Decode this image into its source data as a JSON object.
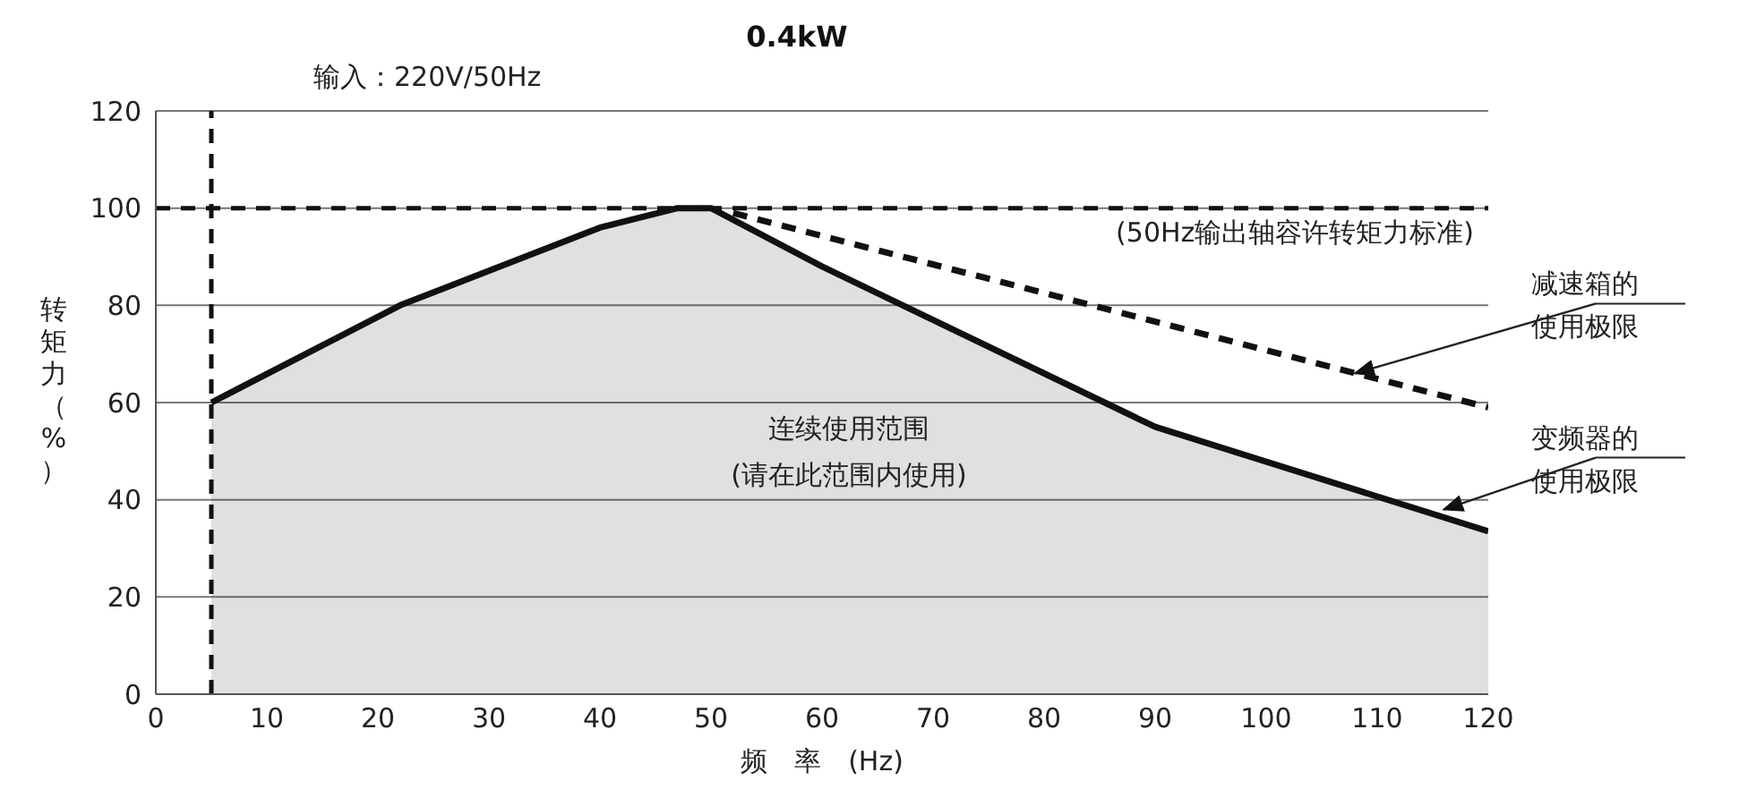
{
  "chart_data": {
    "type": "area",
    "title": "0.4kW",
    "subtitle": "输入：220V/50Hz",
    "xlabel": "频　率　(Hz)",
    "ylabel": "转矩力（%）",
    "series": [
      {
        "color": "#111111",
        "x": [
          5,
          22,
          40,
          47,
          50,
          60,
          90,
          120
        ],
        "values": [
          60,
          80,
          96,
          100,
          100,
          88,
          55,
          33.5
        ]
      },
      {
        "type": "line",
        "color": "#111111",
        "line_style": "dashed",
        "x": [
          52,
          120
        ],
        "values": [
          99,
          59
        ]
      }
    ],
    "xlim": [
      0,
      120
    ],
    "xticks": [
      0,
      10,
      20,
      30,
      40,
      50,
      60,
      70,
      80,
      90,
      100,
      110,
      120
    ],
    "ylim": [
      0,
      120
    ],
    "yticks": [
      0,
      20,
      40,
      60,
      80,
      100,
      120
    ],
    "grid": "y",
    "ref_lines": [
      {
        "axis": "y",
        "value": 100,
        "label": "(50Hz输出轴容许转矩力标准)",
        "color": "#111111",
        "line_style": "dashed"
      },
      {
        "axis": "x",
        "value": 5,
        "label": null,
        "color": "#111111",
        "line_style": "dashed"
      }
    ],
    "annotations": [
      "连续使用范围\n(请在此范围内使用)",
      {
        "text": "减速箱的使用极限",
        "x": 108,
        "y": 66
      },
      {
        "text": "变频器的使用极限",
        "x": 116,
        "y": 38
      }
    ]
  }
}
